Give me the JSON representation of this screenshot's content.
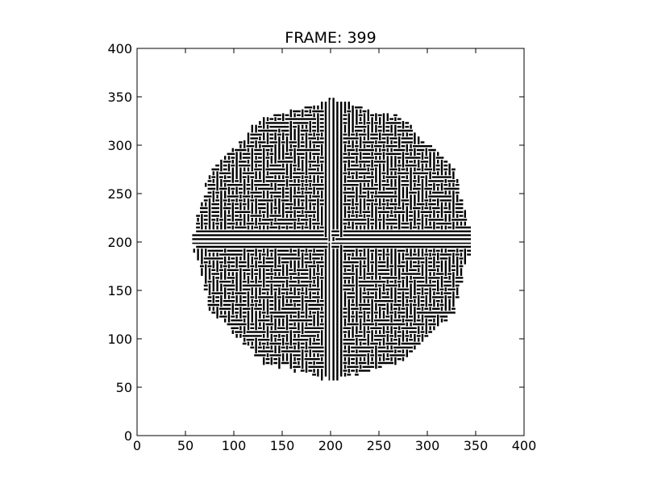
{
  "chart_data": {
    "type": "heatmap",
    "title": "FRAME: 399",
    "xlabel": "",
    "ylabel": "",
    "xlim": [
      0,
      400
    ],
    "ylim": [
      0,
      400
    ],
    "x_ticks": [
      0,
      50,
      100,
      150,
      200,
      250,
      300,
      350,
      400
    ],
    "y_ticks": [
      0,
      50,
      100,
      150,
      200,
      250,
      300,
      350,
      400
    ],
    "x_tick_labels": [
      "0",
      "50",
      "100",
      "150",
      "200",
      "250",
      "300",
      "350",
      "400"
    ],
    "y_tick_labels": [
      "0",
      "50",
      "100",
      "150",
      "200",
      "250",
      "300",
      "350",
      "400"
    ],
    "grid": false,
    "colormap": [
      "#ffffff",
      "#000000"
    ],
    "pattern": {
      "description": "binary maze-like cellular automaton pattern within a roughly circular region",
      "center": [
        200,
        200
      ],
      "radius": 147,
      "cross_axes": [
        200,
        200
      ]
    }
  }
}
